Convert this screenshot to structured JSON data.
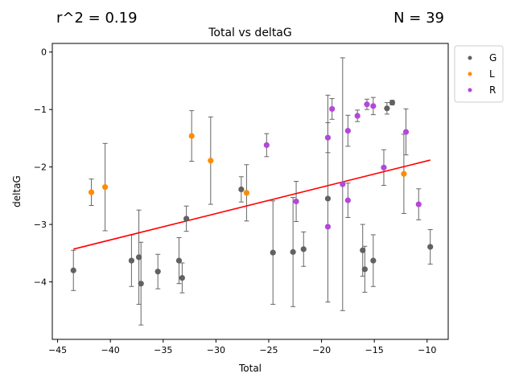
{
  "stats": {
    "r2_label": "r^2 = 0.19",
    "n_label": "N = 39"
  },
  "chart_data": {
    "type": "scatter",
    "title": "Total vs deltaG",
    "xlabel": "Total",
    "ylabel": "deltaG",
    "xlim": [
      -45.5,
      -8.0
    ],
    "ylim": [
      -5.0,
      0.15
    ],
    "xticks": [
      -45,
      -40,
      -35,
      -30,
      -25,
      -20,
      -15,
      -10
    ],
    "yticks": [
      -4,
      -3,
      -2,
      -1,
      0
    ],
    "grid": false,
    "legend": {
      "position": "outside-top-right",
      "entries": [
        "G",
        "L",
        "R"
      ]
    },
    "colors": {
      "G": "#616161",
      "L": "#ff8c00",
      "R": "#b248d9",
      "fit": "#ff0000",
      "err": "#666666"
    },
    "fit_line": {
      "x": [
        -43.5,
        -9.7
      ],
      "y": [
        -3.43,
        -1.88
      ]
    },
    "series": [
      {
        "name": "G",
        "points": [
          {
            "x": -43.5,
            "y": -3.8,
            "err": 0.35
          },
          {
            "x": -38.0,
            "y": -3.63,
            "err": 0.45
          },
          {
            "x": -37.3,
            "y": -3.57,
            "err": 0.82
          },
          {
            "x": -37.1,
            "y": -4.03,
            "err": 0.72
          },
          {
            "x": -35.5,
            "y": -3.82,
            "err": 0.3
          },
          {
            "x": -33.5,
            "y": -3.63,
            "err": 0.4
          },
          {
            "x": -33.2,
            "y": -3.93,
            "err": 0.26
          },
          {
            "x": -32.8,
            "y": -2.9,
            "err": 0.22
          },
          {
            "x": -27.6,
            "y": -2.39,
            "err": 0.22
          },
          {
            "x": -24.6,
            "y": -3.49,
            "err": 0.9
          },
          {
            "x": -22.7,
            "y": -3.48,
            "err": 0.95
          },
          {
            "x": -21.7,
            "y": -3.43,
            "err": 0.3
          },
          {
            "x": -19.4,
            "y": -2.55,
            "err": 1.8
          },
          {
            "x": -16.1,
            "y": -3.45,
            "err": 0.45
          },
          {
            "x": -15.9,
            "y": -3.78,
            "err": 0.4
          },
          {
            "x": -15.1,
            "y": -3.63,
            "err": 0.45
          },
          {
            "x": -13.8,
            "y": -0.98,
            "err": 0.1
          },
          {
            "x": -13.3,
            "y": -0.88,
            "err": 0.04
          },
          {
            "x": -9.7,
            "y": -3.39,
            "err": 0.3
          }
        ]
      },
      {
        "name": "L",
        "points": [
          {
            "x": -41.8,
            "y": -2.44,
            "err": 0.23
          },
          {
            "x": -40.5,
            "y": -2.35,
            "err": 0.76
          },
          {
            "x": -32.3,
            "y": -1.46,
            "err": 0.44
          },
          {
            "x": -30.5,
            "y": -1.89,
            "err": 0.76
          },
          {
            "x": -27.1,
            "y": -2.45,
            "err": 0.49
          },
          {
            "x": -12.2,
            "y": -2.12,
            "err": 0.69
          }
        ]
      },
      {
        "name": "R",
        "points": [
          {
            "x": -25.2,
            "y": -1.62,
            "err": 0.2
          },
          {
            "x": -22.4,
            "y": -2.6,
            "err": 0.35
          },
          {
            "x": -19.4,
            "y": -1.49,
            "err": 0.26
          },
          {
            "x": -19.4,
            "y": -3.04,
            "err": 0.0
          },
          {
            "x": -19.0,
            "y": -0.99,
            "err": 0.18
          },
          {
            "x": -18.0,
            "y": -2.3,
            "err": 2.2
          },
          {
            "x": -17.5,
            "y": -1.37,
            "err": 0.27
          },
          {
            "x": -17.5,
            "y": -2.58,
            "err": 0.3
          },
          {
            "x": -16.6,
            "y": -1.11,
            "err": 0.1
          },
          {
            "x": -15.7,
            "y": -0.91,
            "err": 0.09
          },
          {
            "x": -15.1,
            "y": -0.94,
            "err": 0.15
          },
          {
            "x": -14.1,
            "y": -2.01,
            "err": 0.31
          },
          {
            "x": -12.0,
            "y": -1.39,
            "err": 0.4
          },
          {
            "x": -10.8,
            "y": -2.65,
            "err": 0.27
          }
        ]
      }
    ]
  }
}
